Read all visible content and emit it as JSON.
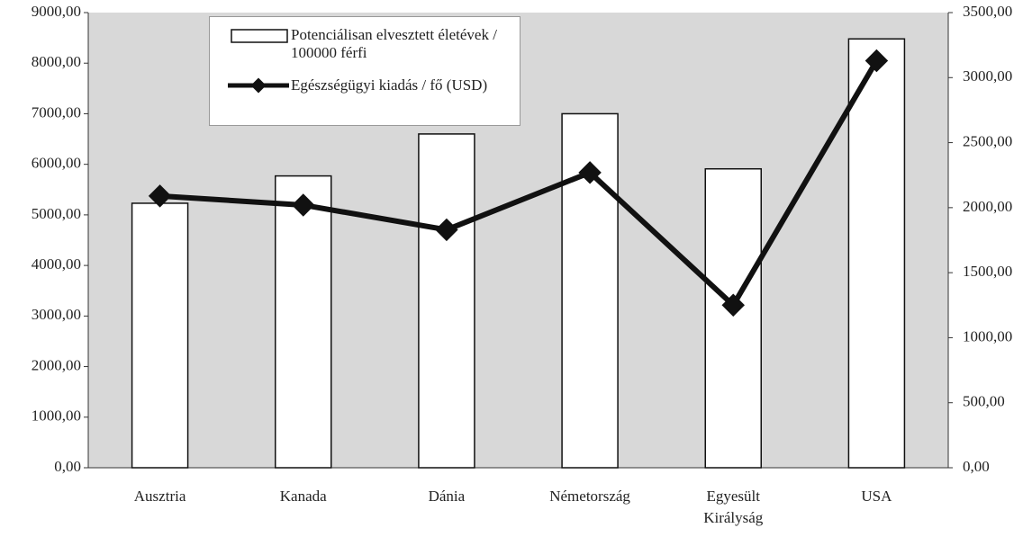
{
  "chart_data": {
    "type": "bar-line",
    "categories": [
      "Ausztria",
      "Kanada",
      "Dánia",
      "Németország",
      "Egyesült Királyság",
      "USA"
    ],
    "series": [
      {
        "name": "Potenciálisan elvesztett életévek / 100000 férfi",
        "type": "bar",
        "color": "#ffffff",
        "values": [
          5230,
          5770,
          6600,
          7000,
          5910,
          8480
        ]
      },
      {
        "name": "Egészségügyi kiadás / fő (USD)",
        "type": "line",
        "axis": "y2",
        "color": "#111111",
        "values": [
          2090,
          2020,
          1830,
          2270,
          1250,
          3130
        ]
      }
    ],
    "ylim": [
      0,
      9000
    ],
    "yticks": [
      {
        "value": 0,
        "label": "0,00"
      },
      {
        "value": 1000,
        "label": "1000,00"
      },
      {
        "value": 2000,
        "label": "2000,00"
      },
      {
        "value": 3000,
        "label": "3000,00"
      },
      {
        "value": 4000,
        "label": "4000,00"
      },
      {
        "value": 5000,
        "label": "5000,00"
      },
      {
        "value": 6000,
        "label": "6000,00"
      },
      {
        "value": 7000,
        "label": "7000,00"
      },
      {
        "value": 8000,
        "label": "8000,00"
      },
      {
        "value": 9000,
        "label": "9000,00"
      }
    ],
    "y2lim": [
      0,
      3500
    ],
    "y2ticks": [
      {
        "value": 0,
        "label": "0,00"
      },
      {
        "value": 500,
        "label": "500,00"
      },
      {
        "value": 1000,
        "label": "1000,00"
      },
      {
        "value": 1500,
        "label": "1500,00"
      },
      {
        "value": 2000,
        "label": "2000,00"
      },
      {
        "value": 2500,
        "label": "2500,00"
      },
      {
        "value": 3000,
        "label": "3000,00"
      },
      {
        "value": 3500,
        "label": "3500,00"
      }
    ],
    "grid": false
  }
}
